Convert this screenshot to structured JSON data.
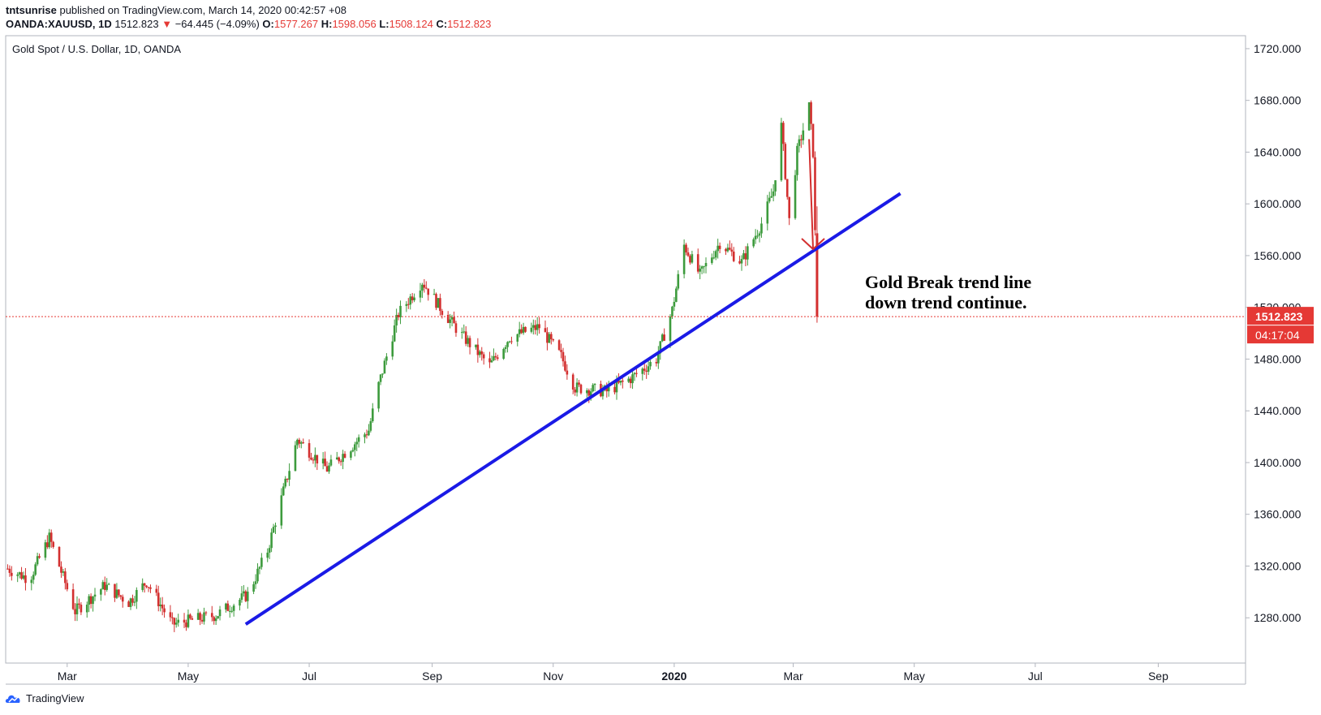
{
  "header": {
    "publisher": "tntsunrise",
    "published_text": "published on TradingView.com, March 14, 2020 00:42:57 +08",
    "symbol": "OANDA:XAUUSD, 1D",
    "last": "1512.823",
    "arrow": "▼",
    "change": "−64.445 (−4.09%)",
    "o_label": "O:",
    "o_value": "1577.267",
    "h_label": "H:",
    "h_value": "1598.056",
    "l_label": "L:",
    "l_value": "1508.124",
    "c_label": "C:",
    "c_value": "1512.823"
  },
  "chart_data": {
    "type": "candlestick",
    "title": "Gold Spot / U.S. Dollar, 1D, OANDA",
    "ylim": [
      1245,
      1730
    ],
    "y_ticks": [
      "1280.000",
      "1320.000",
      "1360.000",
      "1400.000",
      "1440.000",
      "1480.000",
      "1520.000",
      "1560.000",
      "1600.000",
      "1640.000",
      "1680.000",
      "1720.000"
    ],
    "x_ticks": [
      {
        "label": "Mar",
        "date": "2019-03-01",
        "bold": false
      },
      {
        "label": "May",
        "date": "2019-05-01",
        "bold": false
      },
      {
        "label": "Jul",
        "date": "2019-07-01",
        "bold": false
      },
      {
        "label": "Sep",
        "date": "2019-09-01",
        "bold": false
      },
      {
        "label": "Nov",
        "date": "2019-11-01",
        "bold": false
      },
      {
        "label": "2020",
        "date": "2020-01-01",
        "bold": true
      },
      {
        "label": "Mar",
        "date": "2020-03-01",
        "bold": false
      },
      {
        "label": "May",
        "date": "2020-05-01",
        "bold": false
      },
      {
        "label": "Jul",
        "date": "2020-07-01",
        "bold": false
      },
      {
        "label": "Sep",
        "date": "2020-09-01",
        "bold": false
      }
    ],
    "x_range": [
      "2019-01-29",
      "2020-10-15"
    ],
    "price_path": [
      [
        "2019-01-30",
        1318
      ],
      [
        "2019-02-10",
        1310
      ],
      [
        "2019-02-20",
        1342
      ],
      [
        "2019-03-05",
        1285
      ],
      [
        "2019-03-20",
        1305
      ],
      [
        "2019-04-01",
        1292
      ],
      [
        "2019-04-10",
        1308
      ],
      [
        "2019-04-23",
        1275
      ],
      [
        "2019-05-15",
        1282
      ],
      [
        "2019-05-31",
        1298
      ],
      [
        "2019-06-10",
        1332
      ],
      [
        "2019-06-25",
        1418
      ],
      [
        "2019-07-10",
        1395
      ],
      [
        "2019-07-31",
        1425
      ],
      [
        "2019-08-05",
        1460
      ],
      [
        "2019-08-15",
        1515
      ],
      [
        "2019-08-27",
        1540
      ],
      [
        "2019-09-05",
        1520
      ],
      [
        "2019-09-15",
        1500
      ],
      [
        "2019-09-30",
        1475
      ],
      [
        "2019-10-10",
        1497
      ],
      [
        "2019-10-25",
        1505
      ],
      [
        "2019-11-05",
        1482
      ],
      [
        "2019-11-12",
        1458
      ],
      [
        "2019-11-28",
        1455
      ],
      [
        "2019-12-10",
        1465
      ],
      [
        "2019-12-23",
        1480
      ],
      [
        "2019-12-31",
        1518
      ],
      [
        "2020-01-06",
        1568
      ],
      [
        "2020-01-14",
        1545
      ],
      [
        "2020-01-24",
        1570
      ],
      [
        "2020-02-04",
        1555
      ],
      [
        "2020-02-14",
        1585
      ],
      [
        "2020-02-20",
        1610
      ],
      [
        "2020-02-24",
        1660
      ],
      [
        "2020-02-28",
        1587
      ],
      [
        "2020-03-03",
        1640
      ],
      [
        "2020-03-09",
        1675
      ],
      [
        "2020-03-11",
        1640
      ],
      [
        "2020-03-12",
        1577
      ]
    ],
    "last_candle": {
      "date": "2020-03-13",
      "open": 1577.267,
      "high": 1598.056,
      "low": 1508.124,
      "close": 1512.823
    },
    "trend_line": {
      "start": [
        "2019-05-30",
        1275
      ],
      "end": [
        "2020-04-24",
        1608
      ]
    },
    "annotation_arrow": {
      "from": [
        "2020-03-09",
        1650
      ],
      "to": [
        "2020-03-11",
        1565
      ]
    },
    "last_price": "1512.823",
    "countdown": "04:17:04",
    "annotation_lines": [
      "Gold Break trend line",
      "down trend continue."
    ]
  },
  "colors": {
    "up": "#26a69a",
    "up_candle": "#3d9b3d",
    "down": "#d32f2f",
    "trend": "#1a1ae6",
    "price_line": "#e53935",
    "badge": "#e53935"
  },
  "footer": {
    "brand": "TradingView"
  }
}
